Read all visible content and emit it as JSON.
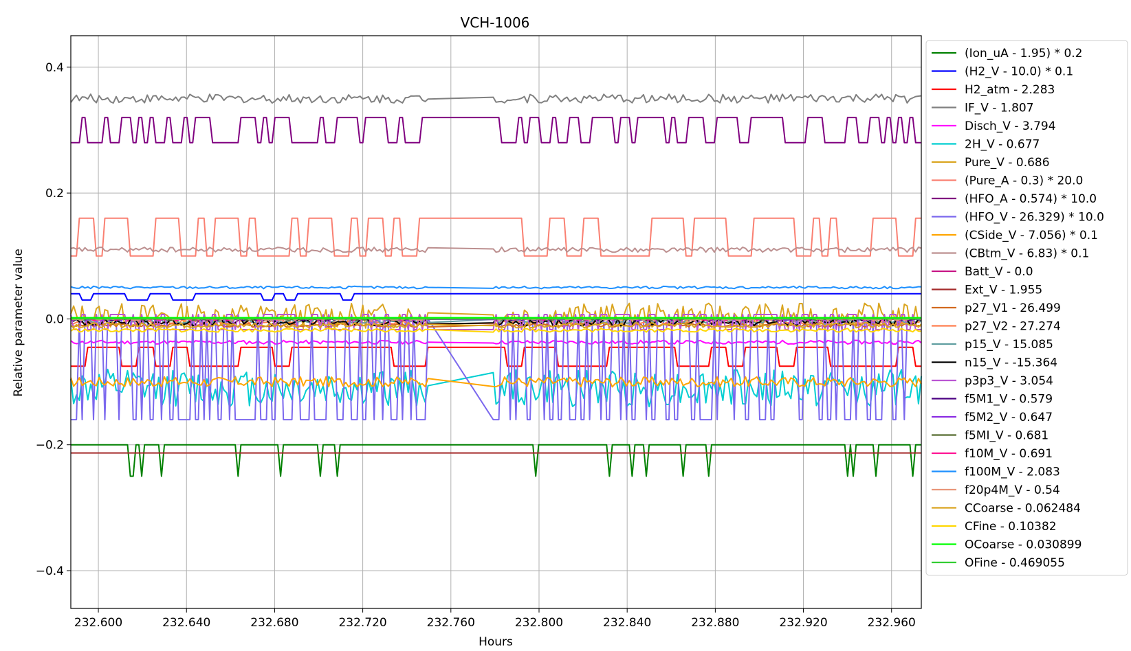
{
  "chart_data": {
    "type": "line",
    "title": "VCH-1006",
    "xlabel": "Hours",
    "ylabel": "Relative parameter value",
    "xlim": [
      232.5875,
      232.9735
    ],
    "ylim": [
      -0.46,
      0.45
    ],
    "xticks": [
      232.6,
      232.64,
      232.68,
      232.72,
      232.76,
      232.8,
      232.84,
      232.88,
      232.92,
      232.96
    ],
    "xtick_labels": [
      "232.600",
      "232.640",
      "232.680",
      "232.720",
      "232.760",
      "232.800",
      "232.840",
      "232.880",
      "232.920",
      "232.960"
    ],
    "yticks": [
      -0.4,
      -0.2,
      0.0,
      0.2,
      0.4
    ],
    "ytick_labels": [
      "−0.4",
      "−0.2",
      "0.0",
      "0.2",
      "0.4"
    ],
    "grid": true,
    "legend_position": "outside-right",
    "gap": [
      232.75,
      232.778
    ],
    "series": [
      {
        "name": "(Ion_uA - 1.95) * 0.2",
        "color": "#008000",
        "base": -0.2,
        "pattern": "dips",
        "amp": 0.05,
        "period": 11
      },
      {
        "name": "(H2_V - 10.0) * 0.1",
        "color": "#0000ff",
        "base": 0.04,
        "pattern": "steps",
        "amp": 0.01,
        "period": 4
      },
      {
        "name": "H2_atm - 2.283",
        "color": "#ff0000",
        "base": -0.06,
        "pattern": "square",
        "amp": 0.015,
        "period": 6
      },
      {
        "name": "IF_V - 1.807",
        "color": "#808080",
        "base": 0.35,
        "pattern": "noise",
        "amp": 0.007,
        "period": 2
      },
      {
        "name": "Disch_V - 3.794",
        "color": "#ff00ff",
        "base": -0.037,
        "pattern": "noise",
        "amp": 0.003,
        "period": 3
      },
      {
        "name": "2H_V - 0.677",
        "color": "#00ced1",
        "base": -0.11,
        "pattern": "noise",
        "amp": 0.03,
        "period": 1
      },
      {
        "name": "Pure_V - 0.686",
        "color": "#daa520",
        "base": 0.005,
        "pattern": "noise",
        "amp": 0.02,
        "period": 1
      },
      {
        "name": "(Pure_A - 0.3) * 20.0",
        "color": "#fa8072",
        "base": 0.13,
        "pattern": "square",
        "amp": 0.03,
        "period": 3
      },
      {
        "name": "(HFO_A - 0.574) * 10.0",
        "color": "#800080",
        "base": 0.3,
        "pattern": "square",
        "amp": 0.02,
        "period": 2
      },
      {
        "name": "(HFO_V - 26.329) * 10.0",
        "color": "#7b68ee",
        "base": -0.08,
        "pattern": "square",
        "amp": 0.08,
        "period": 1
      },
      {
        "name": "(CSide_V - 7.056) * 0.1",
        "color": "#ffa500",
        "base": -0.1,
        "pattern": "noise",
        "amp": 0.008,
        "period": 2
      },
      {
        "name": "(CBtm_V - 6.83) * 0.1",
        "color": "#bc8f8f",
        "base": 0.11,
        "pattern": "noise",
        "amp": 0.004,
        "period": 2
      },
      {
        "name": "Batt_V - 0.0",
        "color": "#c71585",
        "base": 0.0,
        "pattern": "flat",
        "amp": 0,
        "period": 1
      },
      {
        "name": "Ext_V - 1.955",
        "color": "#a52a2a",
        "base": -0.213,
        "pattern": "flat",
        "amp": 0,
        "period": 1
      },
      {
        "name": "p27_V1 - 26.499",
        "color": "#d2691e",
        "base": -0.01,
        "pattern": "noise",
        "amp": 0.003,
        "period": 2
      },
      {
        "name": "p27_V2 - 27.274",
        "color": "#ff7f50",
        "base": -0.005,
        "pattern": "noise",
        "amp": 0.003,
        "period": 2
      },
      {
        "name": "p15_V - 15.085",
        "color": "#5f9ea0",
        "base": -0.003,
        "pattern": "noise",
        "amp": 0.004,
        "period": 2
      },
      {
        "name": "n15_V - -15.364",
        "color": "#000000",
        "base": -0.005,
        "pattern": "noise",
        "amp": 0.006,
        "period": 3
      },
      {
        "name": "p3p3_V - 3.054",
        "color": "#ba55d3",
        "base": -0.005,
        "pattern": "square",
        "amp": 0.012,
        "period": 1
      },
      {
        "name": "f5M1_V - 0.579",
        "color": "#4b0082",
        "base": 0.0,
        "pattern": "noise",
        "amp": 0.002,
        "period": 2
      },
      {
        "name": "f5M2_V - 0.647",
        "color": "#8a2be2",
        "base": 0.0,
        "pattern": "noise",
        "amp": 0.002,
        "period": 2
      },
      {
        "name": "f5MI_V - 0.681",
        "color": "#556b2f",
        "base": 0.0,
        "pattern": "noise",
        "amp": 0.002,
        "period": 2
      },
      {
        "name": "f10M_V - 0.691",
        "color": "#ff1493",
        "base": 0.0,
        "pattern": "noise",
        "amp": 0.002,
        "period": 2
      },
      {
        "name": "f100M_V - 2.083",
        "color": "#1e90ff",
        "base": 0.05,
        "pattern": "noise",
        "amp": 0.002,
        "period": 2
      },
      {
        "name": "f20p4M_V - 0.54",
        "color": "#e9967a",
        "base": 0.0,
        "pattern": "noise",
        "amp": 0.002,
        "period": 2
      },
      {
        "name": "CCoarse - 0.062484",
        "color": "#daa520",
        "base": -0.01,
        "pattern": "noise",
        "amp": 0.004,
        "period": 2
      },
      {
        "name": "CFine - 0.10382",
        "color": "#ffd700",
        "base": -0.018,
        "pattern": "noise",
        "amp": 0.003,
        "period": 2
      },
      {
        "name": "OCoarse - 0.030899",
        "color": "#00ff00",
        "base": 0.002,
        "pattern": "flat",
        "amp": 0,
        "period": 1
      },
      {
        "name": "OFine - 0.469055",
        "color": "#32cd32",
        "base": 0.0,
        "pattern": "flat",
        "amp": 0,
        "period": 1
      }
    ]
  }
}
